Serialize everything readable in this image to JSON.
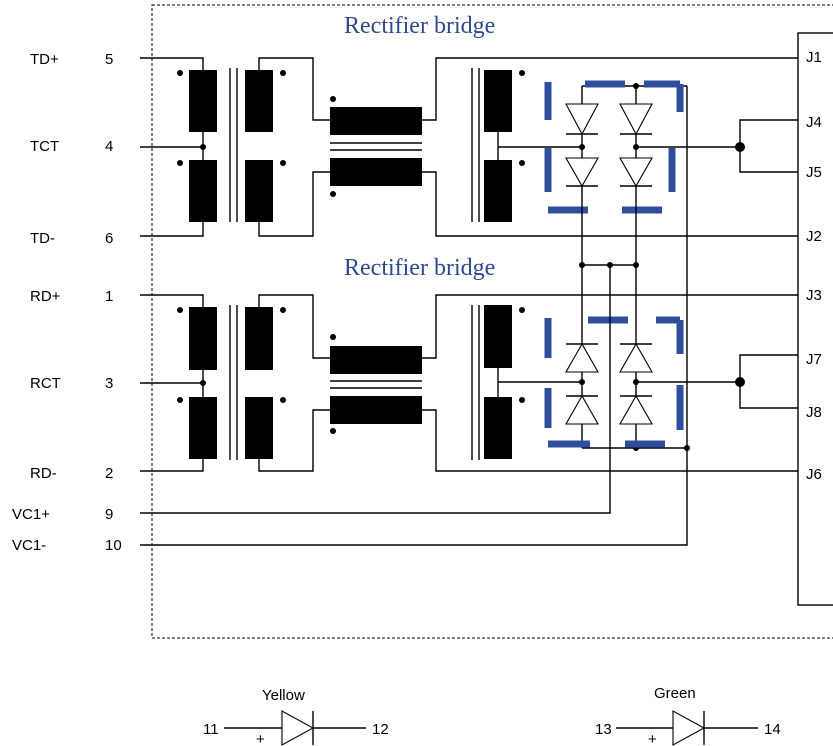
{
  "bridge_labels": [
    "Rectifier bridge",
    "Rectifier bridge"
  ],
  "pins_left": [
    {
      "name": "TD+",
      "num": "5"
    },
    {
      "name": "TCT",
      "num": "4"
    },
    {
      "name": "TD-",
      "num": "6"
    },
    {
      "name": "RD+",
      "num": "1"
    },
    {
      "name": "RCT",
      "num": "3"
    },
    {
      "name": "RD-",
      "num": "2"
    },
    {
      "name": "VC1+",
      "num": "9"
    },
    {
      "name": "VC1-",
      "num": "10"
    }
  ],
  "pins_right": [
    "J1",
    "J4",
    "J5",
    "J2",
    "J3",
    "J7",
    "J8",
    "J6"
  ],
  "leds": [
    {
      "color": "Yellow",
      "anode": "11",
      "cathode": "12",
      "polarity": "+"
    },
    {
      "color": "Green",
      "anode": "13",
      "cathode": "14",
      "polarity": "+"
    }
  ],
  "colors": {
    "bridge_highlight": "#2f4f9e",
    "label": "#2e4a8c"
  }
}
